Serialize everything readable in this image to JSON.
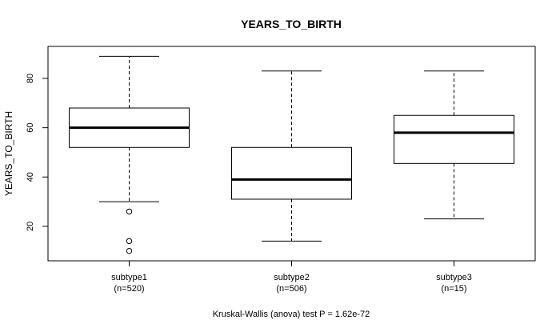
{
  "chart_data": {
    "type": "box",
    "title": "YEARS_TO_BIRTH",
    "ylabel": "YEARS_TO_BIRTH",
    "xlabel": "",
    "ylim": [
      6,
      93
    ],
    "yticks": [
      20,
      40,
      60,
      80
    ],
    "footnote": "Kruskal-Wallis (anova) test P = 1.62e-72",
    "groups": [
      {
        "name": "subtype1",
        "n_label": "(n=520)",
        "whisker_low": 30,
        "q1": 52,
        "median": 60,
        "q3": 68,
        "whisker_high": 89,
        "outliers": [
          26,
          14,
          10
        ]
      },
      {
        "name": "subtype2",
        "n_label": "(n=506)",
        "whisker_low": 14,
        "q1": 31,
        "median": 39,
        "q3": 52,
        "whisker_high": 83,
        "outliers": []
      },
      {
        "name": "subtype3",
        "n_label": "(n=15)",
        "whisker_low": 23,
        "q1": 45.5,
        "median": 58,
        "q3": 65,
        "whisker_high": 83,
        "outliers": []
      }
    ]
  }
}
